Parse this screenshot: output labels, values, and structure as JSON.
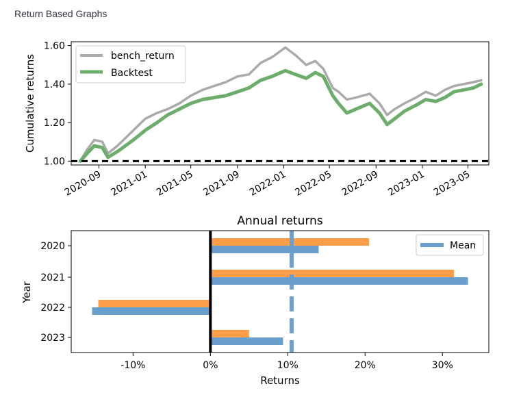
{
  "page": {
    "title": "Return Based Graphs"
  },
  "colors": {
    "bench": "#aaaaaa",
    "backtest": "#6cad6c",
    "baseline": "#000000",
    "annual_orange": "#ff9e4a",
    "annual_blue": "#6a9fcd",
    "mean_line": "#6a9fcd"
  },
  "chart_data": [
    {
      "type": "line",
      "ylabel": "Cumulative returns",
      "xlabel": "",
      "title": "",
      "ylim": [
        0.98,
        1.62
      ],
      "yticks": [
        1.0,
        1.2,
        1.4,
        1.6
      ],
      "ytick_labels": [
        "1.00",
        "1.20",
        "1.40",
        "1.60"
      ],
      "xlim": [
        "2020-06-20",
        "2023-06-25"
      ],
      "xticks": [
        "2020-09-01",
        "2021-01-01",
        "2021-05-01",
        "2021-09-01",
        "2022-01-01",
        "2022-05-01",
        "2022-09-01",
        "2023-01-01",
        "2023-05-01"
      ],
      "xtick_labels": [
        "2020-09",
        "2021-01",
        "2021-05",
        "2021-09",
        "2022-01",
        "2022-05",
        "2022-09",
        "2023-01",
        "2023-05"
      ],
      "legend": "top-left",
      "baseline": 1.0,
      "series": [
        {
          "name": "bench_return",
          "x": [
            "2020-07-14",
            "2020-08-01",
            "2020-08-20",
            "2020-09-10",
            "2020-09-25",
            "2020-10-20",
            "2020-11-10",
            "2020-12-01",
            "2021-01-01",
            "2021-02-01",
            "2021-03-01",
            "2021-04-01",
            "2021-05-01",
            "2021-06-01",
            "2021-07-01",
            "2021-08-01",
            "2021-09-01",
            "2021-10-01",
            "2021-11-01",
            "2021-12-01",
            "2022-01-05",
            "2022-02-01",
            "2022-03-01",
            "2022-03-25",
            "2022-04-15",
            "2022-05-10",
            "2022-05-25",
            "2022-06-16",
            "2022-07-10",
            "2022-08-15",
            "2022-09-10",
            "2022-09-30",
            "2022-10-20",
            "2022-11-15",
            "2022-12-15",
            "2023-01-10",
            "2023-02-05",
            "2023-03-01",
            "2023-03-25",
            "2023-04-20",
            "2023-05-15",
            "2023-06-05"
          ],
          "y": [
            1.0,
            1.06,
            1.11,
            1.1,
            1.04,
            1.08,
            1.12,
            1.16,
            1.22,
            1.25,
            1.27,
            1.3,
            1.34,
            1.37,
            1.39,
            1.41,
            1.44,
            1.45,
            1.51,
            1.54,
            1.59,
            1.55,
            1.5,
            1.52,
            1.48,
            1.38,
            1.36,
            1.32,
            1.33,
            1.35,
            1.3,
            1.24,
            1.27,
            1.3,
            1.33,
            1.36,
            1.34,
            1.37,
            1.39,
            1.4,
            1.41,
            1.42
          ]
        },
        {
          "name": "Backtest",
          "x": [
            "2020-07-14",
            "2020-08-01",
            "2020-08-20",
            "2020-09-10",
            "2020-09-25",
            "2020-10-20",
            "2020-11-10",
            "2020-12-01",
            "2021-01-01",
            "2021-02-01",
            "2021-03-01",
            "2021-04-01",
            "2021-05-01",
            "2021-06-01",
            "2021-07-01",
            "2021-08-01",
            "2021-09-01",
            "2021-10-01",
            "2021-11-01",
            "2021-12-01",
            "2022-01-05",
            "2022-02-01",
            "2022-03-01",
            "2022-03-25",
            "2022-04-15",
            "2022-05-10",
            "2022-05-25",
            "2022-06-16",
            "2022-07-10",
            "2022-08-15",
            "2022-09-10",
            "2022-09-30",
            "2022-10-20",
            "2022-11-15",
            "2022-12-15",
            "2023-01-10",
            "2023-02-05",
            "2023-03-01",
            "2023-03-25",
            "2023-04-20",
            "2023-05-15",
            "2023-06-05"
          ],
          "y": [
            1.0,
            1.04,
            1.08,
            1.07,
            1.02,
            1.05,
            1.08,
            1.11,
            1.16,
            1.2,
            1.24,
            1.27,
            1.3,
            1.32,
            1.33,
            1.34,
            1.36,
            1.38,
            1.42,
            1.44,
            1.47,
            1.45,
            1.43,
            1.46,
            1.44,
            1.34,
            1.3,
            1.25,
            1.27,
            1.3,
            1.25,
            1.19,
            1.22,
            1.26,
            1.29,
            1.32,
            1.31,
            1.33,
            1.36,
            1.37,
            1.38,
            1.4
          ]
        }
      ]
    },
    {
      "type": "bar",
      "orientation": "horizontal",
      "title": "Annual returns",
      "xlabel": "Returns",
      "ylabel": "Year",
      "categories": [
        "2020",
        "2021",
        "2022",
        "2023"
      ],
      "xlim": [
        -18,
        36
      ],
      "xticks": [
        -10,
        0,
        10,
        20,
        30
      ],
      "xtick_labels": [
        "-10%",
        "0%",
        "10%",
        "20%",
        "30%"
      ],
      "series": [
        {
          "values": [
            20.5,
            31.5,
            -14.5,
            5.0
          ]
        },
        {
          "values": [
            14.0,
            33.3,
            -15.3,
            9.4
          ]
        }
      ],
      "mean": 10.5,
      "legend_label": "Mean",
      "legend": "top-right"
    }
  ]
}
